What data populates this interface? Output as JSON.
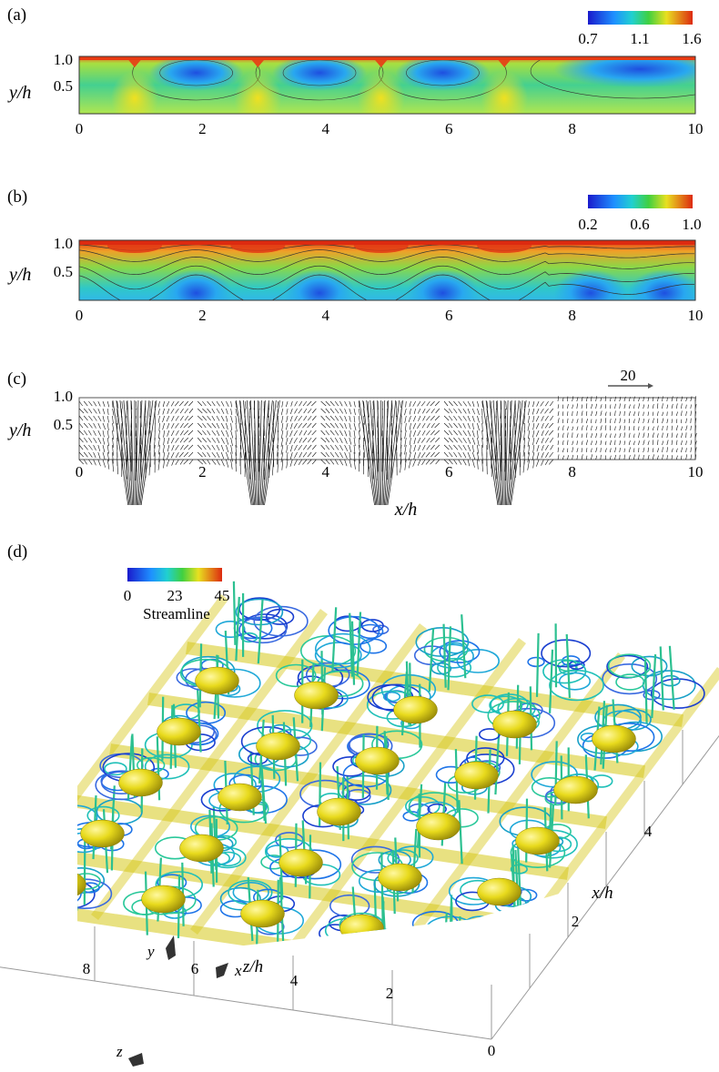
{
  "panels": [
    {
      "label": "(a)",
      "chart_data": {
        "type": "heatmap",
        "xlabel": "",
        "ylabel": "y/h",
        "xlim": [
          0,
          10
        ],
        "ylim": [
          0,
          1
        ],
        "xticks": [
          "0",
          "2",
          "4",
          "6",
          "8",
          "10"
        ],
        "yticks": [
          "0.5",
          "1.0"
        ],
        "colorbar": {
          "ticks": [
            "0.7",
            "1.1",
            "1.6"
          ],
          "range": [
            0.7,
            1.6
          ]
        },
        "features": {
          "low_centres_x": [
            1.9,
            3.9,
            5.9
          ],
          "high_columns_x": [
            0.9,
            2.9,
            4.9,
            6.9
          ]
        }
      }
    },
    {
      "label": "(b)",
      "chart_data": {
        "type": "heatmap",
        "xlabel": "",
        "ylabel": "y/h",
        "xlim": [
          0,
          10
        ],
        "ylim": [
          0,
          1
        ],
        "xticks": [
          "0",
          "2",
          "4",
          "6",
          "8",
          "10"
        ],
        "yticks": [
          "0.5",
          "1.0"
        ],
        "colorbar": {
          "ticks": [
            "0.2",
            "0.6",
            "1.0"
          ],
          "range": [
            0.2,
            1.0
          ]
        },
        "features": {
          "crest_x": [
            0.9,
            2.9,
            4.9,
            6.9
          ],
          "trough_x": [
            1.9,
            3.9,
            5.9,
            8.3,
            9.5
          ]
        }
      }
    },
    {
      "label": "(c)",
      "chart_data": {
        "type": "scatter",
        "plot": "vector",
        "xlabel": "x/h",
        "ylabel": "y/h",
        "xlim": [
          0,
          10
        ],
        "ylim": [
          0,
          1
        ],
        "xticks": [
          "0",
          "2",
          "4",
          "6",
          "8",
          "10"
        ],
        "yticks": [
          "0.5",
          "1.0"
        ],
        "reference_vector": "20",
        "jet_x": [
          0.9,
          2.9,
          4.9,
          6.9
        ]
      }
    },
    {
      "label": "(d)",
      "chart_data": {
        "type": "scatter",
        "plot": "3d-streamlines",
        "legend_title": "Streamline",
        "colorbar": {
          "ticks": [
            "0",
            "23",
            "45"
          ],
          "range": [
            0,
            45
          ]
        },
        "z_axis_label": "z/h",
        "z_ticks": [
          "8",
          "6",
          "4",
          "2",
          "0"
        ],
        "x_axis_label": "x/h",
        "x_ticks": [
          "4",
          "2"
        ],
        "triad": [
          "y",
          "x",
          "z"
        ]
      }
    }
  ],
  "colors": {
    "jet_low": "#1a1acc",
    "jet_mid": "#33cc33",
    "jet_high": "#dd2a10",
    "isosurface": "#e6d81a"
  }
}
